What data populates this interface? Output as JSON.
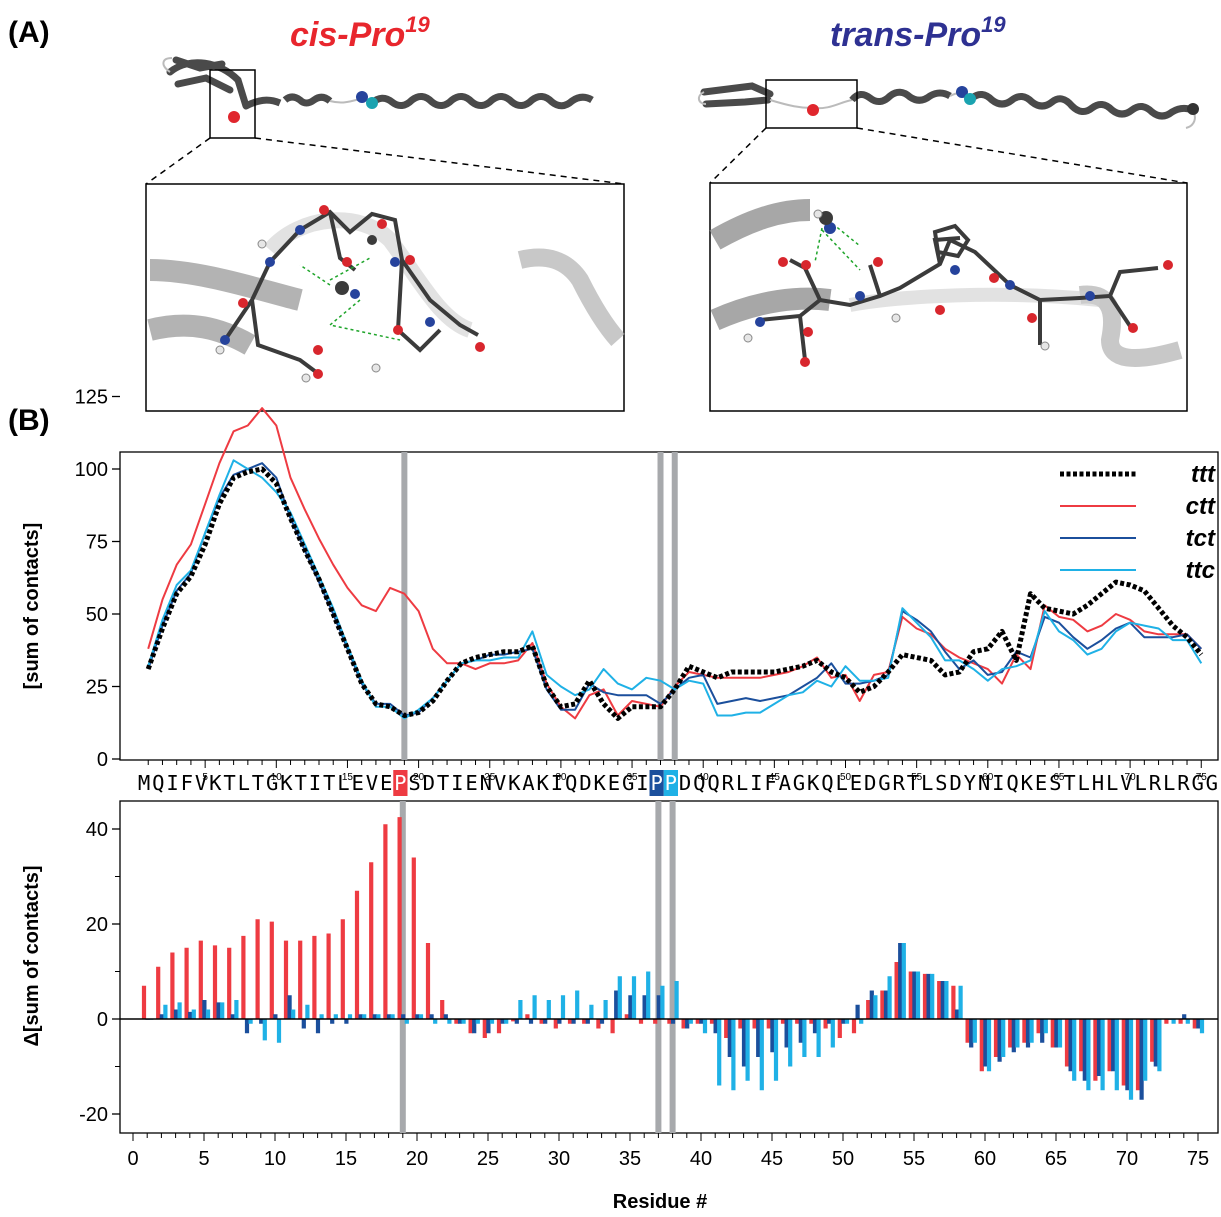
{
  "panel_a": {
    "label": "(A)",
    "left_title_main": "cis-Pro",
    "left_title_sup": "19",
    "right_title_main": "trans-Pro",
    "right_title_sup": "19",
    "colors": {
      "cis": "#e8262d",
      "trans": "#2e3192"
    }
  },
  "panel_b": {
    "label": "(B)"
  },
  "sequence": "MQIFVKTLTGKTITLEVEPSDTIENVKAKIQDKEGIPPDQQRLIFAGKQLEDGRTLSDYNIQKESTLHLVLRLRGG",
  "highlighted_residues": [
    {
      "position": 19,
      "color": "#ee3b42"
    },
    {
      "position": 37,
      "color": "#1b4f9c"
    },
    {
      "position": 38,
      "color": "#1fb1e6"
    }
  ],
  "chart_data": [
    {
      "type": "line",
      "ylabel": "[sum of contacts]",
      "ylim": [
        0,
        130
      ],
      "yticks": [
        0,
        25,
        50,
        75,
        100,
        125
      ],
      "xlim": [
        0,
        76
      ],
      "minor_xtick_labels": [
        5,
        10,
        15,
        20,
        25,
        30,
        35,
        40,
        45,
        50,
        55,
        60,
        65,
        70,
        75
      ],
      "vertical_markers": [
        19,
        37,
        38
      ],
      "legend_position": "top-right",
      "x": [
        1,
        2,
        3,
        4,
        5,
        6,
        7,
        8,
        9,
        10,
        11,
        12,
        13,
        14,
        15,
        16,
        17,
        18,
        19,
        20,
        21,
        22,
        23,
        24,
        25,
        26,
        27,
        28,
        29,
        30,
        31,
        32,
        33,
        34,
        35,
        36,
        37,
        38,
        39,
        40,
        41,
        42,
        43,
        44,
        45,
        46,
        47,
        48,
        49,
        50,
        51,
        52,
        53,
        54,
        55,
        56,
        57,
        58,
        59,
        60,
        61,
        62,
        63,
        64,
        65,
        66,
        67,
        68,
        69,
        70,
        71,
        72,
        73,
        74,
        75
      ],
      "series": [
        {
          "name": "ttt",
          "color": "#000000",
          "style": "dotted",
          "values": [
            31,
            45,
            57,
            63,
            74,
            88,
            97,
            99,
            100,
            95,
            83,
            72,
            62,
            50,
            38,
            26,
            19,
            18,
            15,
            16,
            20,
            27,
            33,
            35,
            36,
            37,
            37,
            39,
            25,
            18,
            19,
            27,
            19,
            14,
            18,
            18,
            18,
            24,
            32,
            30,
            28,
            30,
            30,
            30,
            30,
            31,
            32,
            34,
            30,
            28,
            23,
            25,
            30,
            36,
            35,
            34,
            29,
            30,
            37,
            38,
            44,
            34,
            57,
            52,
            51,
            50,
            53,
            57,
            61,
            60,
            58,
            52,
            46,
            42,
            36
          ]
        },
        {
          "name": "ctt",
          "color": "#ee3b42",
          "style": "solid",
          "values": [
            38,
            55,
            67,
            74,
            88,
            102,
            113,
            115,
            121,
            115,
            97,
            86,
            76,
            67,
            59,
            53,
            51,
            59,
            57,
            51,
            38,
            33,
            33,
            31,
            33,
            33,
            34,
            40,
            26,
            18,
            14,
            22,
            24,
            15,
            20,
            19,
            18,
            25,
            30,
            29,
            28,
            28,
            28,
            28,
            29,
            30,
            32,
            35,
            28,
            29,
            20,
            29,
            30,
            49,
            45,
            43,
            38,
            35,
            33,
            31,
            26,
            36,
            31,
            53,
            49,
            48,
            44,
            46,
            50,
            48,
            44,
            43,
            43,
            43,
            38
          ]
        },
        {
          "name": "tct",
          "color": "#1b4f9c",
          "style": "solid",
          "values": [
            31,
            46,
            58,
            64,
            78,
            90,
            98,
            100,
            102,
            97,
            83,
            72,
            61,
            50,
            38,
            26,
            19,
            19,
            15,
            16,
            21,
            27,
            33,
            34,
            36,
            36,
            37,
            38,
            24,
            17,
            17,
            26,
            23,
            22,
            22,
            22,
            19,
            24,
            28,
            29,
            19,
            20,
            21,
            20,
            21,
            22,
            25,
            28,
            33,
            26,
            26,
            27,
            29,
            51,
            48,
            44,
            37,
            31,
            34,
            29,
            30,
            37,
            35,
            49,
            47,
            42,
            38,
            41,
            45,
            47,
            42,
            42,
            42,
            43,
            38
          ]
        },
        {
          "name": "ttc",
          "color": "#1fb1e6",
          "style": "solid",
          "values": [
            32,
            48,
            60,
            65,
            78,
            91,
            103,
            100,
            97,
            92,
            85,
            74,
            63,
            52,
            39,
            27,
            18,
            18,
            14,
            17,
            21,
            27,
            33,
            34,
            34,
            35,
            35,
            44,
            29,
            25,
            22,
            24,
            31,
            26,
            24,
            28,
            27,
            24,
            27,
            26,
            15,
            15,
            16,
            16,
            19,
            22,
            23,
            27,
            25,
            32,
            27,
            27,
            28,
            52,
            47,
            42,
            34,
            34,
            31,
            27,
            31,
            32,
            34,
            51,
            44,
            41,
            36,
            38,
            44,
            47,
            46,
            45,
            41,
            41,
            33
          ]
        }
      ]
    },
    {
      "type": "bar",
      "ylabel": "Δ[sum of contacts]",
      "xlabel": "Residue #",
      "ylim": [
        -31,
        50
      ],
      "yticks": [
        -20,
        0,
        20,
        40
      ],
      "xlim": [
        -1,
        76
      ],
      "xticks": [
        0,
        5,
        10,
        15,
        20,
        25,
        30,
        35,
        40,
        45,
        50,
        55,
        60,
        65,
        70,
        75
      ],
      "vertical_markers": [
        19,
        37,
        38
      ],
      "x": [
        1,
        2,
        3,
        4,
        5,
        6,
        7,
        8,
        9,
        10,
        11,
        12,
        13,
        14,
        15,
        16,
        17,
        18,
        19,
        20,
        21,
        22,
        23,
        24,
        25,
        26,
        27,
        28,
        29,
        30,
        31,
        32,
        33,
        34,
        35,
        36,
        37,
        38,
        39,
        40,
        41,
        42,
        43,
        44,
        45,
        46,
        47,
        48,
        49,
        50,
        51,
        52,
        53,
        54,
        55,
        56,
        57,
        58,
        59,
        60,
        61,
        62,
        63,
        64,
        65,
        66,
        67,
        68,
        69,
        70,
        71,
        72,
        73,
        74,
        75
      ],
      "series": [
        {
          "name": "ctt",
          "color": "#ee3b42",
          "values": [
            7,
            11,
            14,
            15,
            16.5,
            15.5,
            15,
            17.5,
            21,
            20.5,
            16.5,
            16.5,
            17.5,
            18,
            21,
            27,
            33,
            41,
            42.5,
            34,
            16,
            4,
            -1,
            -3,
            -4,
            -3,
            -0.5,
            1,
            -1,
            -2,
            -1,
            -1,
            -2,
            -3,
            1,
            -1,
            -1,
            -1,
            -2,
            -1,
            -1,
            -4,
            -2,
            -2,
            -2,
            -1,
            -1,
            -1,
            -2,
            -4,
            -3,
            4,
            6,
            12,
            10,
            9.5,
            8,
            7,
            -5,
            -11,
            -8,
            -6,
            -5,
            -3,
            -6,
            -10,
            -11,
            -13,
            -11,
            -14,
            -15,
            -9,
            -1,
            -1,
            -2
          ]
        },
        {
          "name": "tct",
          "color": "#1b4f9c",
          "values": [
            0,
            1,
            2,
            1.5,
            4,
            3.5,
            1,
            -3,
            -1,
            1,
            5,
            -2,
            -3,
            -1,
            -1,
            1,
            1,
            1,
            1,
            1,
            1,
            1,
            -1,
            -3,
            -3,
            -1,
            -1,
            -1,
            -1,
            -1,
            -1,
            -1,
            -1,
            6,
            5,
            5,
            5,
            -1,
            -2,
            -1,
            -3,
            -8,
            -10,
            -8,
            -7,
            -6,
            -5,
            -3,
            -1,
            -1,
            3,
            6,
            6,
            16,
            10,
            9.5,
            8,
            2,
            -6,
            -10,
            -9,
            -7,
            -6,
            -5,
            -6,
            -11,
            -13,
            -12,
            -11,
            -15,
            -17,
            -10,
            0,
            1,
            -2
          ]
        },
        {
          "name": "ttc",
          "color": "#1fb1e6",
          "values": [
            0,
            3,
            3.5,
            2,
            2,
            3.5,
            4,
            -1,
            -4.5,
            -5,
            2,
            3,
            1,
            1,
            1,
            1,
            1,
            1,
            -1,
            1,
            -1,
            -1,
            -1,
            -1,
            -1,
            -1,
            4,
            5,
            4,
            5,
            6,
            3,
            4,
            9,
            9,
            10,
            7,
            8,
            -1,
            -3,
            -14,
            -15,
            -13,
            -15,
            -13,
            -10,
            -8,
            -8,
            -6,
            -1,
            -1,
            5,
            9,
            16,
            10,
            9.5,
            8,
            7,
            -5,
            -11,
            -8,
            -6,
            -5,
            -3,
            -6,
            -13,
            -15,
            -15,
            -15,
            -17,
            -13,
            -11,
            -1,
            -1,
            -3
          ]
        }
      ]
    }
  ]
}
